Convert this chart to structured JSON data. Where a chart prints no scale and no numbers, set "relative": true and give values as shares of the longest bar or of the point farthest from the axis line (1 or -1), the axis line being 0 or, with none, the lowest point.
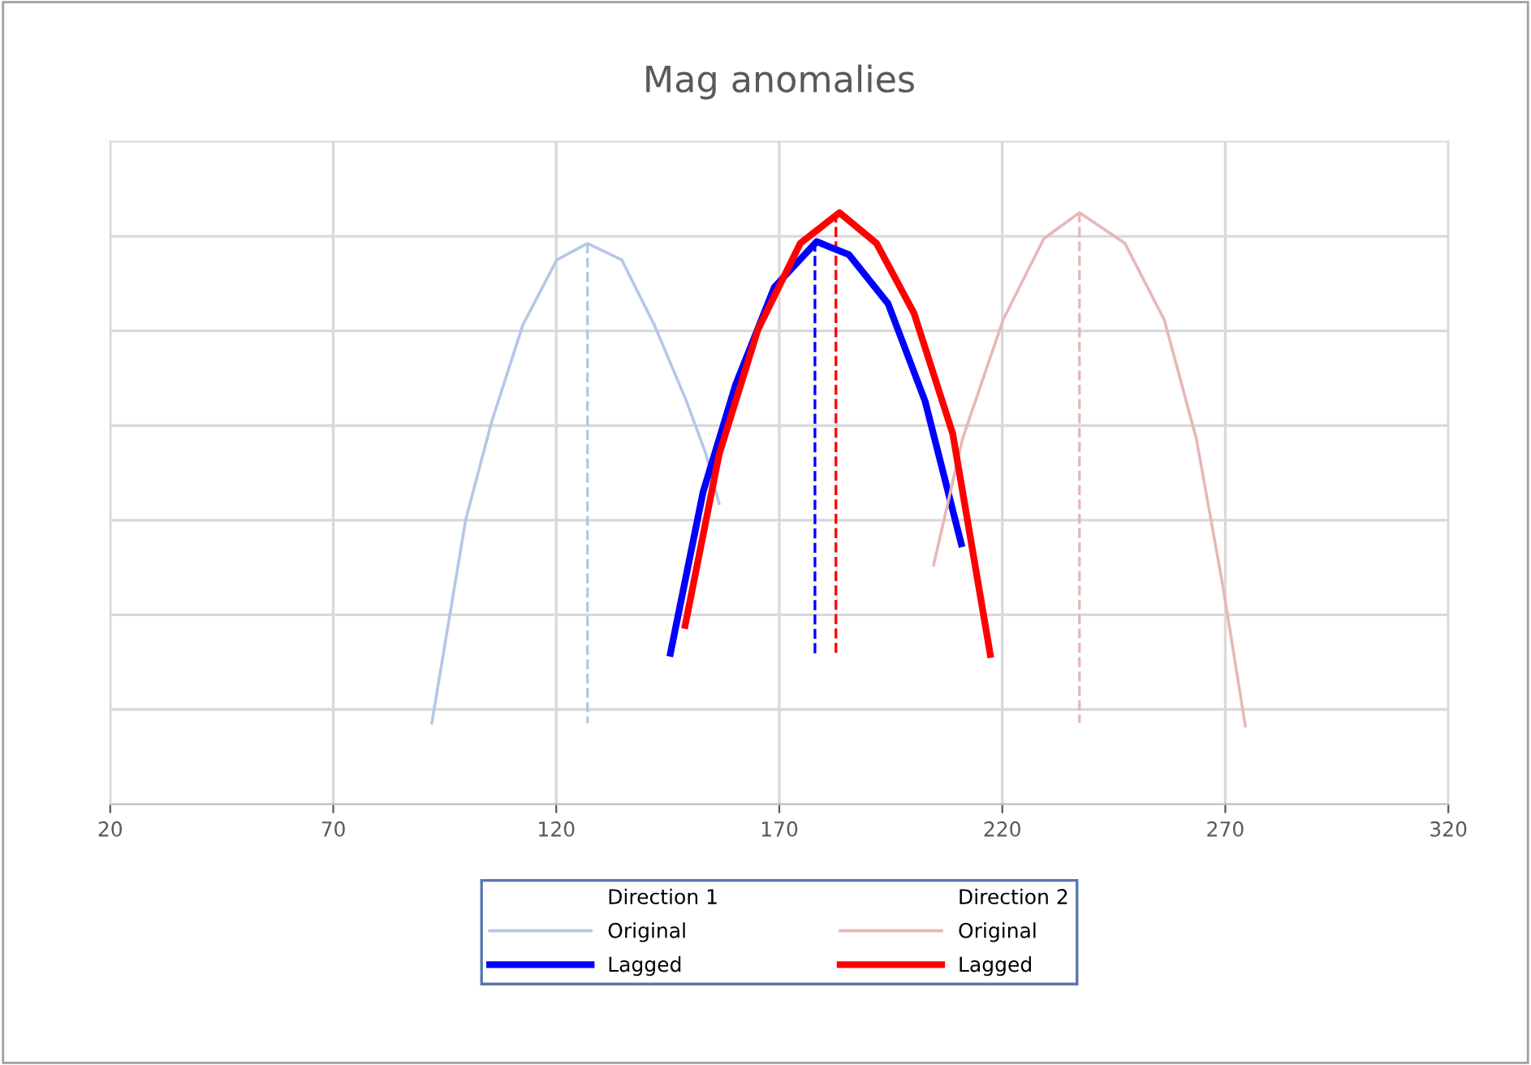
{
  "chart_data": {
    "type": "line",
    "title": "Mag anomalies",
    "relative": true,
    "xlim": [
      20,
      320
    ],
    "xticks": [
      20,
      70,
      120,
      170,
      220,
      270,
      320
    ],
    "tick_labels": "x",
    "grid": true,
    "legend": "bottom",
    "marker": "none",
    "annotations": [
      "Direction 1",
      "Direction 2"
    ],
    "series": [
      {
        "name": "Original",
        "color": "#b4c7e7",
        "x": [
          92.1,
          99.7,
          105.5,
          112.5,
          120.1,
          127.0,
          134.7,
          142.0,
          149.2,
          153.6,
          156.5
        ],
        "values": [
          0.137,
          0.481,
          0.646,
          0.81,
          0.92,
          0.948,
          0.92,
          0.81,
          0.681,
          0.591,
          0.508
        ]
      },
      {
        "name": "Lagged",
        "color": "#0000ff",
        "x": [
          145.6,
          152.9,
          160.2,
          168.9,
          178.4,
          185.6,
          194.4,
          202.7,
          210.8
        ],
        "values": [
          0.255,
          0.527,
          0.709,
          0.874,
          0.951,
          0.929,
          0.846,
          0.681,
          0.44
        ]
      },
      {
        "name": "Original",
        "color": "#e6b8b7",
        "x": [
          204.6,
          211.1,
          220.2,
          229.3,
          237.3,
          247.5,
          256.3,
          263.5,
          269.4,
          274.5
        ],
        "values": [
          0.404,
          0.618,
          0.819,
          0.956,
          1.0,
          0.948,
          0.819,
          0.618,
          0.371,
          0.132
        ]
      },
      {
        "name": "Lagged",
        "color": "#ff0000",
        "x": [
          148.9,
          156.5,
          165.2,
          174.7,
          183.5,
          191.8,
          200.2,
          208.9,
          217.3
        ],
        "values": [
          0.302,
          0.591,
          0.802,
          0.948,
          1.0,
          0.948,
          0.83,
          0.626,
          0.253
        ]
      },
      {
        "color": "#b4c7e7",
        "line_style": "dashed",
        "x": [
          127.0,
          127.0
        ],
        "values": [
          0.948,
          0.137
        ]
      },
      {
        "color": "#0000ff",
        "line_style": "dashed",
        "x": [
          178.0,
          178.0
        ],
        "values": [
          0.951,
          0.253
        ]
      },
      {
        "color": "#ff0000",
        "line_style": "dashed",
        "x": [
          182.7,
          182.7
        ],
        "values": [
          1.0,
          0.253
        ]
      },
      {
        "color": "#e6b8b7",
        "line_style": "dashed",
        "x": [
          237.3,
          237.3
        ],
        "values": [
          1.0,
          0.137
        ]
      }
    ]
  }
}
